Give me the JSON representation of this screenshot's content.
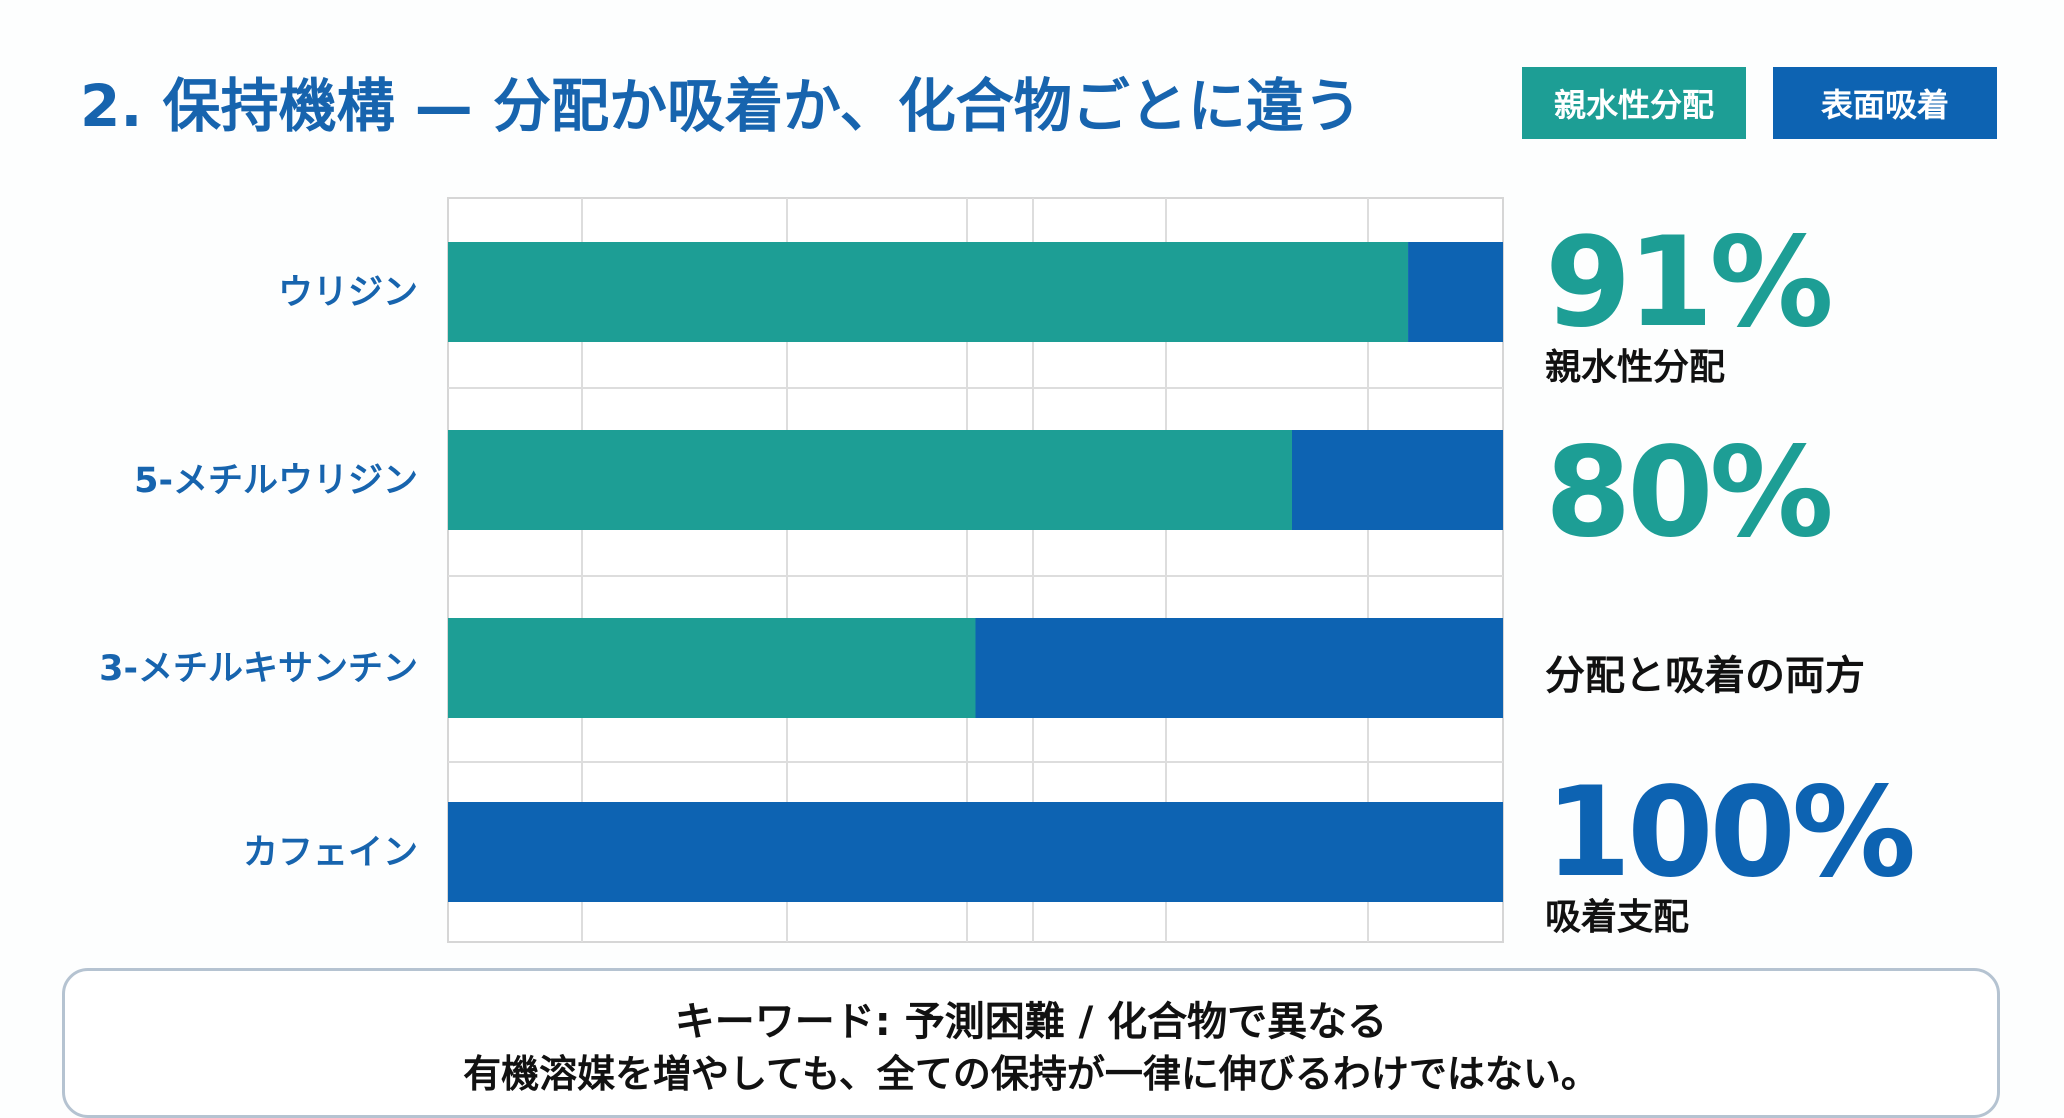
{
  "title": "2. 保持機構 — 分配か吸着か、化合物ごとに違う",
  "legend": [
    {
      "label": "親水性分配",
      "color": "#1d9e95"
    },
    {
      "label": "表面吸着",
      "color": "#0d63b2"
    }
  ],
  "chart_data": {
    "type": "bar",
    "orientation": "horizontal",
    "stacked": true,
    "categories": [
      "ウリジン",
      "5-メチルウリジン",
      "3-メチルキサンチン",
      "カフェイン"
    ],
    "series": [
      {
        "name": "親水性分配",
        "color": "#1d9e95",
        "values": [
          91,
          80,
          50,
          0
        ]
      },
      {
        "name": "表面吸着",
        "color": "#0d63b2",
        "values": [
          9,
          20,
          50,
          100
        ]
      }
    ],
    "xlim": [
      0,
      100
    ],
    "grid": true,
    "legend_position": "top-right"
  },
  "callouts": [
    {
      "value": "91%",
      "desc": "親水性分配",
      "color": "#1d9e95"
    },
    {
      "value": "80%",
      "desc": "",
      "color": "#1d9e95"
    },
    {
      "value": "",
      "desc": "分配と吸着の両方",
      "color": "#111111"
    },
    {
      "value": "100%",
      "desc": "吸着支配",
      "color": "#0d63b2"
    }
  ],
  "keyword": {
    "line1": "キーワード: 予測困難 / 化合物で異なる",
    "line2": "有機溶媒を増やしても、全ての保持が一律に伸びるわけではない。"
  }
}
